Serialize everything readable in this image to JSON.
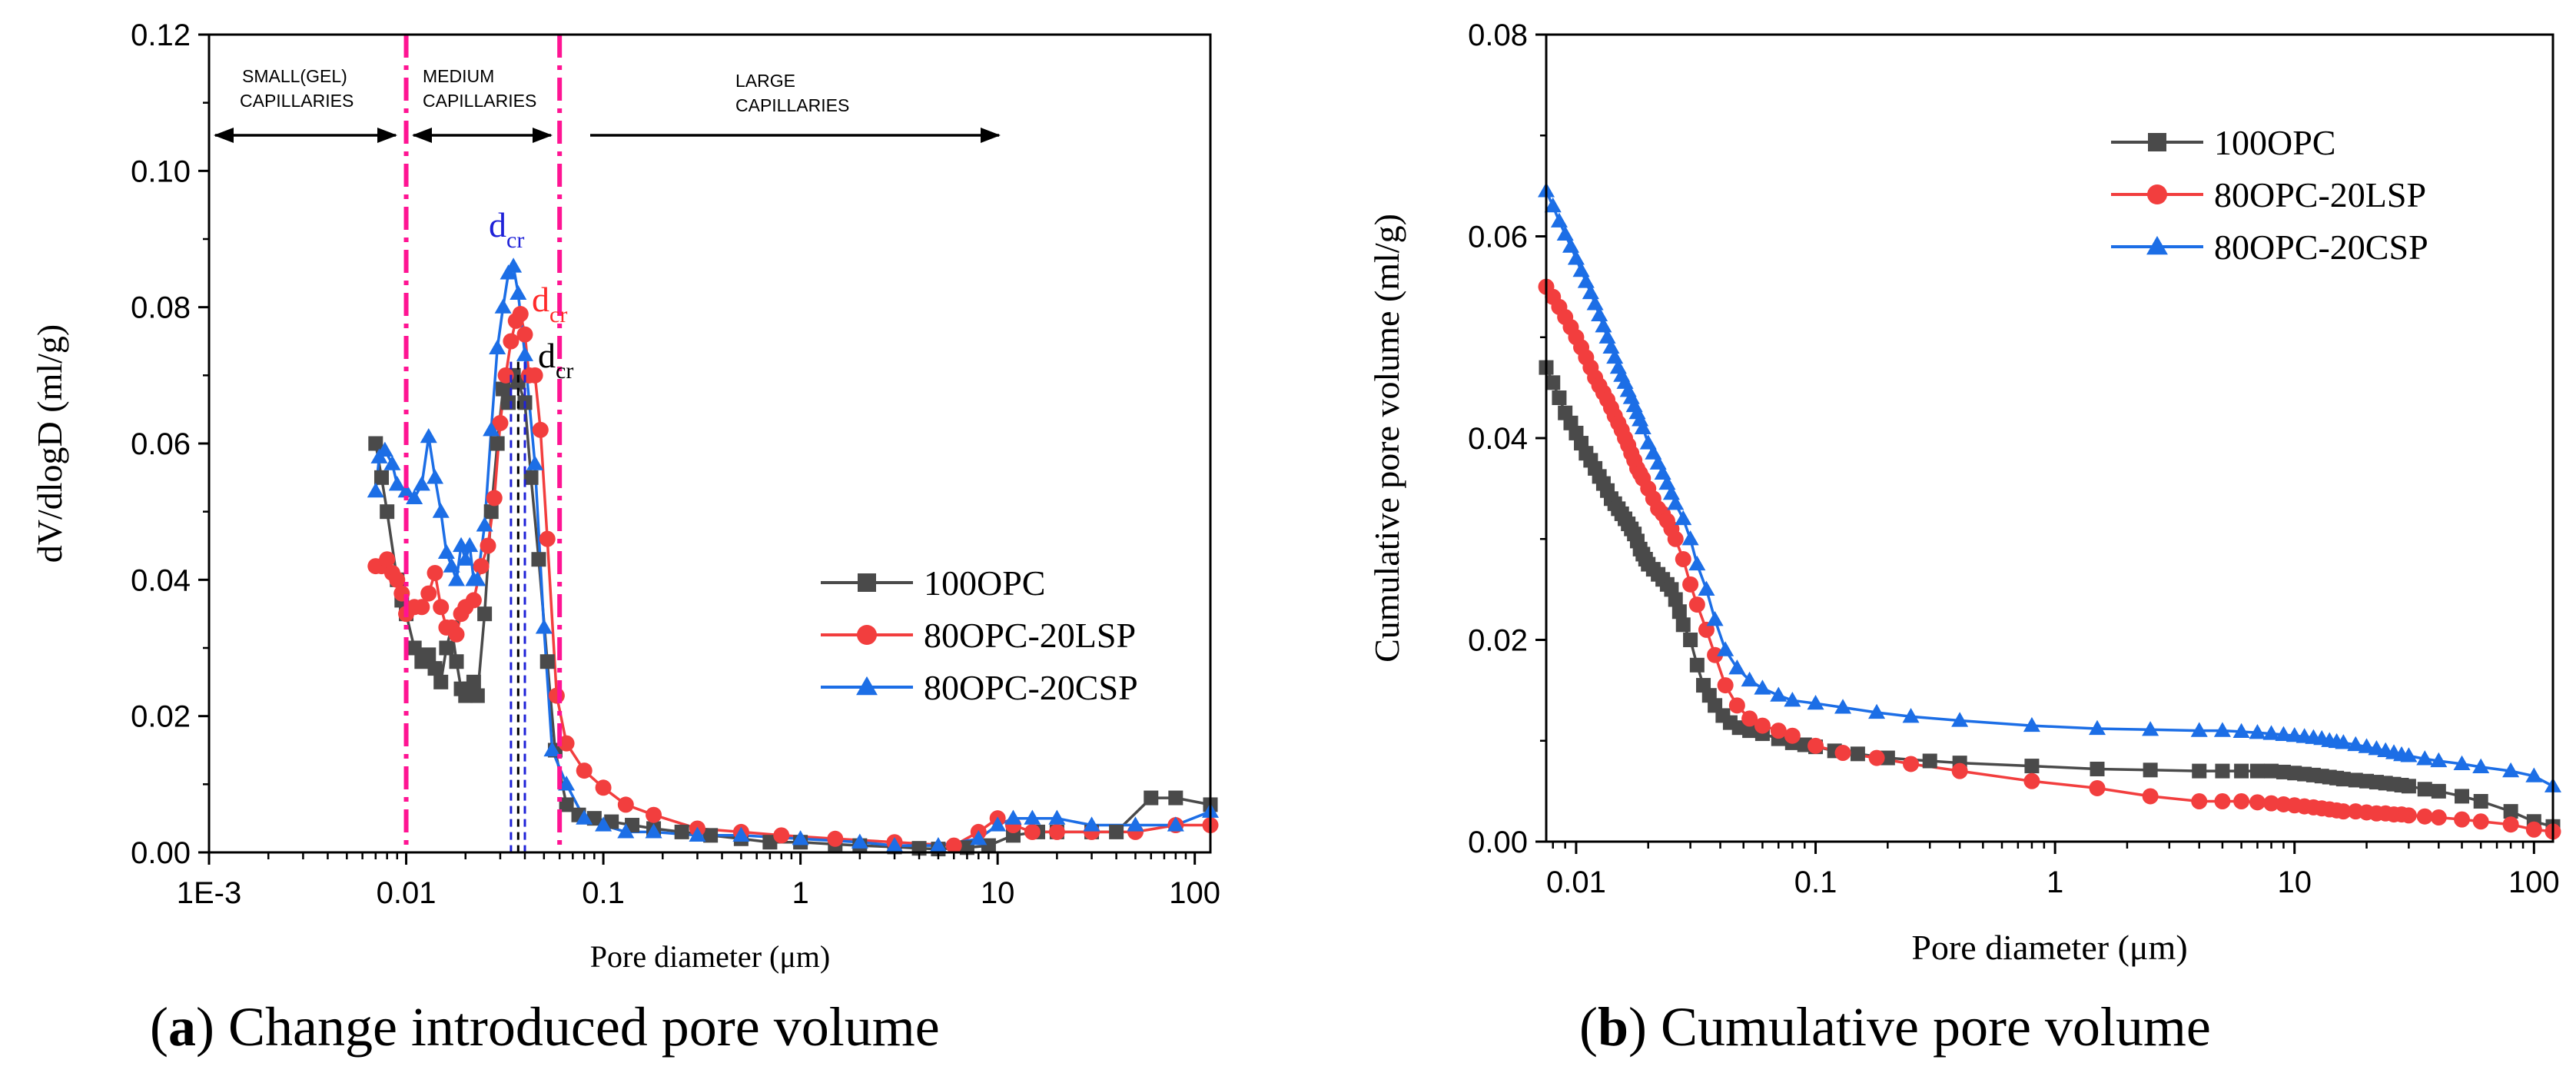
{
  "captions": {
    "a": {
      "letter": "a",
      "text": " Change introduced pore volume"
    },
    "b": {
      "letter": "b",
      "text": " Cumulative pore volume"
    }
  },
  "regions": {
    "small": [
      "SMALL(GEL)",
      "CAPILLARIES"
    ],
    "medium": [
      "MEDIUM",
      "CAPILLARIES"
    ],
    "large": [
      "LARGE",
      "CAPILLARIES"
    ]
  },
  "dcr": {
    "labels": [
      {
        "main": "d",
        "sub": "cr",
        "color": "#1f22d8",
        "series": "80OPC-20CSP"
      },
      {
        "main": "d",
        "sub": "cr",
        "color": "#ff2a2a",
        "series": "80OPC-20LSP"
      },
      {
        "main": "d",
        "sub": "cr",
        "color": "#000000",
        "series": "100OPC"
      }
    ],
    "values_um": {
      "100OPC": 0.037,
      "80OPC-20LSP": 0.04,
      "80OPC-20CSP": 0.034
    }
  },
  "colors": {
    "100OPC": "#4a4a4a",
    "80OPC-20LSP": "#f23e3e",
    "80OPC-20CSP": "#1c6ee6",
    "boundary": "#ff1493"
  },
  "chart_data": [
    {
      "id": "a",
      "type": "line",
      "title": "",
      "xlabel": "Pore diameter (μm)",
      "ylabel": "dV/dlogD (ml/g)",
      "xscale": "log",
      "xlim": [
        0.001,
        120
      ],
      "ylim": [
        0,
        0.12
      ],
      "xticks": [
        0.001,
        0.01,
        0.1,
        1,
        10,
        100
      ],
      "xtick_labels": [
        "1E-3",
        "0.01",
        "0.1",
        "1",
        "10",
        "100"
      ],
      "yticks": [
        0,
        0.02,
        0.04,
        0.06,
        0.08,
        0.1,
        0.12
      ],
      "ytick_labels": [
        "0.00",
        "0.02",
        "0.04",
        "0.06",
        "0.08",
        "0.10",
        "0.12"
      ],
      "boundaries_um": [
        0.01,
        0.06
      ],
      "legend_position": "right-middle",
      "series": [
        {
          "name": "100OPC",
          "marker": "square",
          "x": [
            0.007,
            0.0075,
            0.008,
            0.009,
            0.0095,
            0.01,
            0.011,
            0.012,
            0.013,
            0.014,
            0.015,
            0.016,
            0.017,
            0.018,
            0.019,
            0.02,
            0.021,
            0.022,
            0.023,
            0.025,
            0.027,
            0.029,
            0.031,
            0.033,
            0.035,
            0.037,
            0.04,
            0.043,
            0.047,
            0.052,
            0.057,
            0.065,
            0.075,
            0.09,
            0.11,
            0.14,
            0.18,
            0.25,
            0.35,
            0.5,
            0.7,
            1,
            1.5,
            2,
            3,
            4,
            5,
            7,
            9,
            12,
            16,
            20,
            30,
            40,
            60,
            80,
            120
          ],
          "values": [
            0.06,
            0.055,
            0.05,
            0.04,
            0.037,
            0.035,
            0.03,
            0.028,
            0.029,
            0.027,
            0.025,
            0.03,
            0.033,
            0.028,
            0.024,
            0.023,
            0.024,
            0.025,
            0.023,
            0.035,
            0.05,
            0.06,
            0.068,
            0.066,
            0.07,
            0.069,
            0.066,
            0.055,
            0.043,
            0.028,
            0.015,
            0.007,
            0.0055,
            0.005,
            0.0045,
            0.004,
            0.0035,
            0.003,
            0.0025,
            0.002,
            0.0015,
            0.0015,
            0.0012,
            0.001,
            0.0008,
            0.0006,
            0.0005,
            0.0007,
            0.001,
            0.0025,
            0.003,
            0.003,
            0.003,
            0.003,
            0.008,
            0.008,
            0.007
          ]
        },
        {
          "name": "80OPC-20LSP",
          "marker": "circle",
          "x": [
            0.007,
            0.0075,
            0.008,
            0.0085,
            0.009,
            0.0095,
            0.01,
            0.011,
            0.012,
            0.013,
            0.014,
            0.015,
            0.016,
            0.017,
            0.018,
            0.019,
            0.02,
            0.022,
            0.024,
            0.026,
            0.028,
            0.03,
            0.032,
            0.034,
            0.036,
            0.038,
            0.04,
            0.042,
            0.045,
            0.048,
            0.052,
            0.058,
            0.065,
            0.08,
            0.1,
            0.13,
            0.18,
            0.3,
            0.5,
            0.8,
            1.5,
            3,
            6,
            8,
            10,
            12,
            15,
            20,
            30,
            50,
            80,
            120
          ],
          "values": [
            0.042,
            0.042,
            0.043,
            0.041,
            0.04,
            0.038,
            0.035,
            0.036,
            0.036,
            0.038,
            0.041,
            0.036,
            0.033,
            0.033,
            0.032,
            0.035,
            0.036,
            0.037,
            0.042,
            0.045,
            0.052,
            0.063,
            0.07,
            0.075,
            0.078,
            0.079,
            0.076,
            0.07,
            0.07,
            0.062,
            0.046,
            0.023,
            0.016,
            0.012,
            0.0095,
            0.007,
            0.0055,
            0.0035,
            0.003,
            0.0025,
            0.002,
            0.0015,
            0.001,
            0.003,
            0.005,
            0.004,
            0.003,
            0.003,
            0.003,
            0.003,
            0.004,
            0.004
          ]
        },
        {
          "name": "80OPC-20CSP",
          "marker": "triangle",
          "x": [
            0.007,
            0.0073,
            0.0078,
            0.0085,
            0.009,
            0.01,
            0.011,
            0.012,
            0.013,
            0.014,
            0.015,
            0.016,
            0.017,
            0.018,
            0.019,
            0.02,
            0.021,
            0.022,
            0.023,
            0.025,
            0.027,
            0.029,
            0.031,
            0.033,
            0.035,
            0.037,
            0.04,
            0.045,
            0.05,
            0.055,
            0.065,
            0.08,
            0.1,
            0.13,
            0.18,
            0.3,
            0.5,
            1,
            2,
            3,
            5,
            8,
            10,
            12,
            15,
            20,
            30,
            50,
            80,
            120
          ],
          "values": [
            0.053,
            0.058,
            0.059,
            0.057,
            0.054,
            0.053,
            0.052,
            0.054,
            0.061,
            0.055,
            0.05,
            0.044,
            0.042,
            0.04,
            0.045,
            0.043,
            0.045,
            0.04,
            0.04,
            0.048,
            0.062,
            0.074,
            0.08,
            0.085,
            0.086,
            0.082,
            0.073,
            0.057,
            0.033,
            0.015,
            0.01,
            0.005,
            0.004,
            0.003,
            0.003,
            0.0025,
            0.0025,
            0.002,
            0.0015,
            0.001,
            0.001,
            0.002,
            0.004,
            0.005,
            0.005,
            0.005,
            0.004,
            0.004,
            0.004,
            0.006
          ]
        }
      ]
    },
    {
      "id": "b",
      "type": "line",
      "title": "",
      "xlabel": "Pore diameter (μm)",
      "ylabel": "Cumulative pore volume (ml/g)",
      "xscale": "log",
      "xlim": [
        0.0075,
        120
      ],
      "ylim": [
        0,
        0.08
      ],
      "xticks": [
        0.01,
        0.1,
        1,
        10,
        100
      ],
      "xtick_labels": [
        "0.01",
        "0.1",
        "1",
        "10",
        "100"
      ],
      "yticks": [
        0,
        0.02,
        0.04,
        0.06,
        0.08
      ],
      "ytick_labels": [
        "0.00",
        "0.02",
        "0.04",
        "0.06",
        "0.08"
      ],
      "legend_position": "top-right",
      "series": [
        {
          "name": "100OPC",
          "marker": "square",
          "x": [
            0.0075,
            0.008,
            0.0085,
            0.009,
            0.0095,
            0.01,
            0.0105,
            0.011,
            0.0115,
            0.012,
            0.0125,
            0.013,
            0.0135,
            0.014,
            0.0145,
            0.015,
            0.0155,
            0.016,
            0.0165,
            0.017,
            0.0175,
            0.018,
            0.0185,
            0.019,
            0.0195,
            0.02,
            0.021,
            0.022,
            0.023,
            0.024,
            0.025,
            0.026,
            0.027,
            0.028,
            0.03,
            0.032,
            0.034,
            0.036,
            0.038,
            0.041,
            0.044,
            0.048,
            0.053,
            0.06,
            0.07,
            0.08,
            0.09,
            0.1,
            0.12,
            0.15,
            0.2,
            0.3,
            0.4,
            0.8,
            1.5,
            2.5,
            4,
            5,
            6,
            7,
            8,
            9,
            10,
            11,
            12,
            13,
            14,
            15,
            16,
            18,
            20,
            22,
            24,
            26,
            28,
            30,
            35,
            40,
            50,
            60,
            80,
            100,
            120
          ],
          "values": [
            0.047,
            0.0455,
            0.044,
            0.0425,
            0.0415,
            0.0405,
            0.0395,
            0.0385,
            0.0378,
            0.037,
            0.0362,
            0.0355,
            0.0348,
            0.034,
            0.0335,
            0.033,
            0.0325,
            0.032,
            0.0315,
            0.031,
            0.0305,
            0.0298,
            0.029,
            0.0285,
            0.028,
            0.0275,
            0.027,
            0.0265,
            0.026,
            0.0255,
            0.025,
            0.024,
            0.0228,
            0.0215,
            0.02,
            0.0175,
            0.0155,
            0.0145,
            0.0135,
            0.0125,
            0.0118,
            0.0113,
            0.011,
            0.0107,
            0.0102,
            0.0098,
            0.0096,
            0.0094,
            0.009,
            0.0087,
            0.0083,
            0.008,
            0.0078,
            0.0075,
            0.0072,
            0.0071,
            0.007,
            0.007,
            0.007,
            0.007,
            0.007,
            0.0069,
            0.0068,
            0.0067,
            0.0066,
            0.0065,
            0.0064,
            0.0063,
            0.0062,
            0.0061,
            0.006,
            0.0059,
            0.0058,
            0.0057,
            0.0056,
            0.0055,
            0.0052,
            0.005,
            0.0045,
            0.004,
            0.003,
            0.002,
            0.0015
          ]
        },
        {
          "name": "80OPC-20LSP",
          "marker": "circle",
          "x": [
            0.0075,
            0.008,
            0.0085,
            0.009,
            0.0095,
            0.01,
            0.0105,
            0.011,
            0.0115,
            0.012,
            0.0125,
            0.013,
            0.0135,
            0.014,
            0.0145,
            0.015,
            0.0155,
            0.016,
            0.0165,
            0.017,
            0.0175,
            0.018,
            0.0185,
            0.019,
            0.02,
            0.021,
            0.022,
            0.023,
            0.024,
            0.025,
            0.026,
            0.028,
            0.03,
            0.032,
            0.035,
            0.038,
            0.042,
            0.047,
            0.053,
            0.06,
            0.07,
            0.08,
            0.1,
            0.13,
            0.18,
            0.25,
            0.4,
            0.8,
            1.5,
            2.5,
            4,
            5,
            6,
            7,
            8,
            9,
            10,
            11,
            12,
            13,
            14,
            15,
            16,
            18,
            20,
            22,
            24,
            26,
            28,
            30,
            35,
            40,
            50,
            60,
            80,
            100,
            120
          ],
          "values": [
            0.055,
            0.054,
            0.053,
            0.052,
            0.051,
            0.05,
            0.049,
            0.048,
            0.047,
            0.046,
            0.0452,
            0.0445,
            0.0438,
            0.043,
            0.0422,
            0.0415,
            0.0408,
            0.04,
            0.0393,
            0.0385,
            0.0378,
            0.037,
            0.0365,
            0.036,
            0.035,
            0.034,
            0.033,
            0.0325,
            0.0318,
            0.031,
            0.03,
            0.028,
            0.0255,
            0.0235,
            0.021,
            0.0185,
            0.0155,
            0.0135,
            0.0122,
            0.0115,
            0.011,
            0.0105,
            0.0095,
            0.0088,
            0.0083,
            0.0077,
            0.007,
            0.006,
            0.0053,
            0.0045,
            0.004,
            0.004,
            0.004,
            0.0039,
            0.0038,
            0.0037,
            0.0036,
            0.0035,
            0.0034,
            0.0033,
            0.0032,
            0.0031,
            0.003,
            0.003,
            0.0029,
            0.0028,
            0.0028,
            0.0027,
            0.0027,
            0.0026,
            0.0025,
            0.0024,
            0.0022,
            0.002,
            0.0017,
            0.0012,
            0.001
          ]
        },
        {
          "name": "80OPC-20CSP",
          "marker": "triangle",
          "x": [
            0.0075,
            0.008,
            0.0085,
            0.009,
            0.0095,
            0.01,
            0.0105,
            0.011,
            0.0115,
            0.012,
            0.0125,
            0.013,
            0.0135,
            0.014,
            0.0145,
            0.015,
            0.0155,
            0.016,
            0.0165,
            0.017,
            0.0175,
            0.018,
            0.0185,
            0.019,
            0.02,
            0.021,
            0.022,
            0.023,
            0.024,
            0.025,
            0.026,
            0.028,
            0.03,
            0.032,
            0.035,
            0.038,
            0.042,
            0.047,
            0.053,
            0.06,
            0.07,
            0.08,
            0.1,
            0.13,
            0.18,
            0.25,
            0.4,
            0.8,
            1.5,
            2.5,
            4,
            5,
            6,
            7,
            8,
            9,
            10,
            11,
            12,
            13,
            14,
            15,
            16,
            18,
            20,
            22,
            24,
            26,
            28,
            30,
            35,
            40,
            50,
            60,
            80,
            100,
            120
          ],
          "values": [
            0.0645,
            0.063,
            0.0615,
            0.0602,
            0.059,
            0.0578,
            0.0566,
            0.0555,
            0.0544,
            0.0533,
            0.0522,
            0.0511,
            0.05,
            0.049,
            0.048,
            0.047,
            0.0462,
            0.0455,
            0.0447,
            0.044,
            0.0432,
            0.0425,
            0.0418,
            0.041,
            0.0395,
            0.0385,
            0.0375,
            0.0365,
            0.0355,
            0.0345,
            0.0335,
            0.032,
            0.03,
            0.0275,
            0.025,
            0.022,
            0.019,
            0.0172,
            0.016,
            0.0152,
            0.0145,
            0.014,
            0.0137,
            0.0133,
            0.0128,
            0.0124,
            0.012,
            0.0115,
            0.0112,
            0.0111,
            0.011,
            0.011,
            0.0109,
            0.0108,
            0.0107,
            0.0106,
            0.0105,
            0.0104,
            0.0103,
            0.0102,
            0.01,
            0.0099,
            0.0098,
            0.0096,
            0.0094,
            0.0092,
            0.009,
            0.0088,
            0.0086,
            0.0085,
            0.0082,
            0.008,
            0.0077,
            0.0074,
            0.007,
            0.0065,
            0.0055
          ]
        }
      ]
    }
  ]
}
